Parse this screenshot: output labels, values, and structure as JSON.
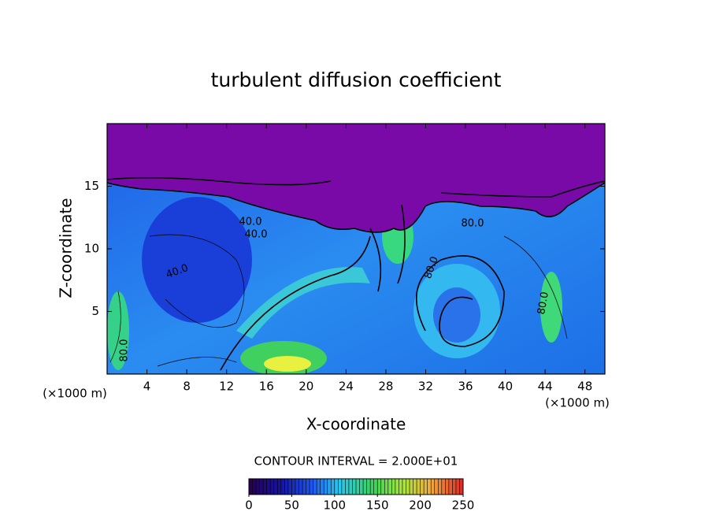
{
  "chart_data": {
    "type": "contour",
    "title": "turbulent diffusion coefficient",
    "xlabel": "X-coordinate",
    "ylabel": "Z-coordinate",
    "x_unit_label": "(×1000 m)",
    "y_unit_label": "(×1000 m)",
    "xlim": [
      0,
      50
    ],
    "ylim": [
      0,
      20
    ],
    "xticks": [
      4,
      8,
      12,
      16,
      20,
      24,
      28,
      32,
      36,
      40,
      44,
      48
    ],
    "yticks": [
      5,
      10,
      15
    ],
    "contour_interval": {
      "value": 20,
      "label": "CONTOUR INTERVAL = 2.000E+01"
    },
    "contour_labels": [
      {
        "value": 40,
        "label": "40.0"
      },
      {
        "value": 40,
        "label": "40.0"
      },
      {
        "value": 40,
        "label": "40.0"
      },
      {
        "value": 80,
        "label": "80.0"
      },
      {
        "value": 80,
        "label": "80.0"
      },
      {
        "value": 80,
        "label": "80.0"
      },
      {
        "value": 80,
        "label": "80.0"
      }
    ],
    "colorbar": {
      "clim": [
        0,
        250
      ],
      "ticks": [
        0,
        50,
        100,
        150,
        200,
        250
      ]
    }
  }
}
